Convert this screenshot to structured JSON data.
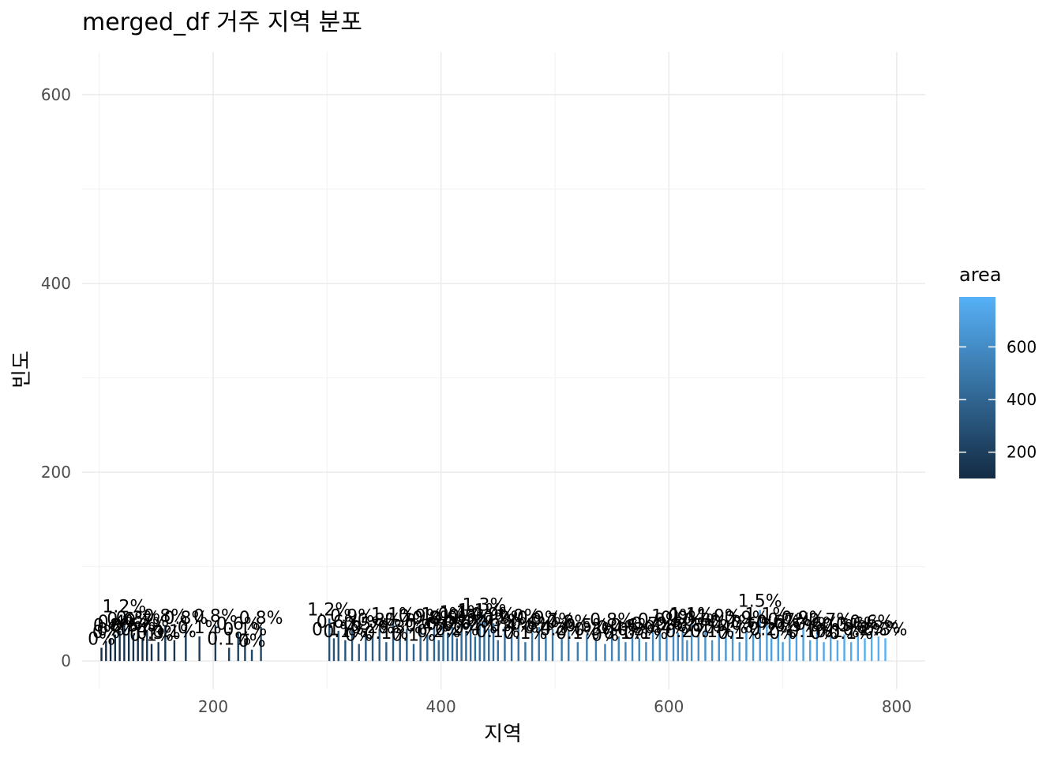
{
  "chart_data": {
    "type": "bar",
    "title": "merged_df 거주 지역 분포",
    "xlabel": "지역",
    "ylabel": "빈도",
    "xlim": [
      85,
      825
    ],
    "ylim": [
      -30,
      645
    ],
    "x_ticks": [
      200,
      400,
      600,
      800
    ],
    "y_ticks": [
      0,
      200,
      400,
      600
    ],
    "grid": true,
    "fill_scale": {
      "variable": "area",
      "low_color": "#132b43",
      "high_color": "#56b1f7",
      "range": [
        100,
        790
      ],
      "ticks": [
        200,
        400,
        600
      ]
    },
    "legend_position": "right",
    "bars": [
      {
        "x": 102,
        "y": 14,
        "label": "0%"
      },
      {
        "x": 106,
        "y": 21,
        "label": "0%"
      },
      {
        "x": 110,
        "y": 24,
        "label": "0%"
      },
      {
        "x": 114,
        "y": 28,
        "label": "0.8%"
      },
      {
        "x": 118,
        "y": 32,
        "label": "0.4%"
      },
      {
        "x": 122,
        "y": 48,
        "label": "1.2%"
      },
      {
        "x": 126,
        "y": 35,
        "label": "0.6%"
      },
      {
        "x": 130,
        "y": 28,
        "label": "0.5%"
      },
      {
        "x": 134,
        "y": 36,
        "label": "0.3%"
      },
      {
        "x": 138,
        "y": 24,
        "label": "0.4%"
      },
      {
        "x": 142,
        "y": 33,
        "label": "0.7%"
      },
      {
        "x": 146,
        "y": 18,
        "label": "0.1%"
      },
      {
        "x": 152,
        "y": 20,
        "label": "0.3%"
      },
      {
        "x": 158,
        "y": 38,
        "label": "0.8%"
      },
      {
        "x": 166,
        "y": 22,
        "label": "0.1%"
      },
      {
        "x": 176,
        "y": 36,
        "label": "0.8%"
      },
      {
        "x": 188,
        "y": 26,
        "label": "0.1%"
      },
      {
        "x": 202,
        "y": 38,
        "label": "0.8%"
      },
      {
        "x": 214,
        "y": 14,
        "label": "0.1%"
      },
      {
        "x": 222,
        "y": 30,
        "label": "0.6%"
      },
      {
        "x": 228,
        "y": 24,
        "label": "0.1%"
      },
      {
        "x": 234,
        "y": 12,
        "label": "0%"
      },
      {
        "x": 242,
        "y": 36,
        "label": "0.8%"
      },
      {
        "x": 302,
        "y": 45,
        "label": "1.2%"
      },
      {
        "x": 306,
        "y": 24,
        "label": "0.1%"
      },
      {
        "x": 310,
        "y": 32,
        "label": "0.6%"
      },
      {
        "x": 316,
        "y": 22,
        "label": "0.1%"
      },
      {
        "x": 322,
        "y": 38,
        "label": "0.9%"
      },
      {
        "x": 328,
        "y": 18,
        "label": "0%"
      },
      {
        "x": 334,
        "y": 30,
        "label": "0.5%"
      },
      {
        "x": 340,
        "y": 26,
        "label": "0.2%"
      },
      {
        "x": 346,
        "y": 34,
        "label": "0.8%"
      },
      {
        "x": 352,
        "y": 20,
        "label": "0.1%"
      },
      {
        "x": 358,
        "y": 40,
        "label": "1.1%"
      },
      {
        "x": 364,
        "y": 26,
        "label": "0.3%"
      },
      {
        "x": 370,
        "y": 34,
        "label": "0.7%"
      },
      {
        "x": 376,
        "y": 18,
        "label": "0.1%"
      },
      {
        "x": 382,
        "y": 38,
        "label": "0.9%"
      },
      {
        "x": 388,
        "y": 28,
        "label": "0.4%"
      },
      {
        "x": 394,
        "y": 36,
        "label": "0.8%"
      },
      {
        "x": 398,
        "y": 22,
        "label": "0.2%"
      },
      {
        "x": 402,
        "y": 40,
        "label": "1.0%"
      },
      {
        "x": 406,
        "y": 30,
        "label": "0.6%"
      },
      {
        "x": 410,
        "y": 36,
        "label": "0.9%"
      },
      {
        "x": 414,
        "y": 24,
        "label": "0.2%"
      },
      {
        "x": 418,
        "y": 42,
        "label": "1.1%"
      },
      {
        "x": 422,
        "y": 32,
        "label": "0.6%"
      },
      {
        "x": 426,
        "y": 38,
        "label": "0.9%"
      },
      {
        "x": 430,
        "y": 26,
        "label": "0.4%"
      },
      {
        "x": 434,
        "y": 44,
        "label": "1.1%"
      },
      {
        "x": 438,
        "y": 50,
        "label": "1.3%"
      },
      {
        "x": 442,
        "y": 34,
        "label": "0.7%"
      },
      {
        "x": 446,
        "y": 40,
        "label": "0.9%"
      },
      {
        "x": 450,
        "y": 22,
        "label": "0.1%"
      },
      {
        "x": 456,
        "y": 36,
        "label": "0.9%"
      },
      {
        "x": 462,
        "y": 28,
        "label": "0.4%"
      },
      {
        "x": 468,
        "y": 38,
        "label": "1.0%"
      },
      {
        "x": 474,
        "y": 20,
        "label": "0.1%"
      },
      {
        "x": 480,
        "y": 30,
        "label": "0.6%"
      },
      {
        "x": 486,
        "y": 36,
        "label": "0.9%"
      },
      {
        "x": 492,
        "y": 26,
        "label": "0.4%"
      },
      {
        "x": 498,
        "y": 34,
        "label": "0.7%"
      },
      {
        "x": 506,
        "y": 24,
        "label": "0.2%"
      },
      {
        "x": 512,
        "y": 32,
        "label": "0.8%"
      },
      {
        "x": 520,
        "y": 20,
        "label": "0.1%"
      },
      {
        "x": 528,
        "y": 28,
        "label": "0.5%"
      },
      {
        "x": 536,
        "y": 24,
        "label": "0.3%"
      },
      {
        "x": 544,
        "y": 18,
        "label": "0%"
      },
      {
        "x": 550,
        "y": 34,
        "label": "0.8%"
      },
      {
        "x": 556,
        "y": 26,
        "label": "0.4%"
      },
      {
        "x": 562,
        "y": 20,
        "label": "0.1%"
      },
      {
        "x": 568,
        "y": 28,
        "label": "0.6%"
      },
      {
        "x": 574,
        "y": 24,
        "label": "0.3%"
      },
      {
        "x": 580,
        "y": 20,
        "label": "0.1%"
      },
      {
        "x": 586,
        "y": 30,
        "label": "0.7%"
      },
      {
        "x": 592,
        "y": 34,
        "label": "0.9%"
      },
      {
        "x": 598,
        "y": 26,
        "label": "0.4%"
      },
      {
        "x": 604,
        "y": 38,
        "label": "1.0%"
      },
      {
        "x": 608,
        "y": 30,
        "label": "0.6%"
      },
      {
        "x": 612,
        "y": 36,
        "label": "0.9%"
      },
      {
        "x": 616,
        "y": 22,
        "label": "0.2%"
      },
      {
        "x": 620,
        "y": 40,
        "label": "1.1%"
      },
      {
        "x": 626,
        "y": 28,
        "label": "0.5%"
      },
      {
        "x": 632,
        "y": 34,
        "label": "0.8%"
      },
      {
        "x": 638,
        "y": 22,
        "label": "0.1%"
      },
      {
        "x": 644,
        "y": 38,
        "label": "1.0%"
      },
      {
        "x": 650,
        "y": 26,
        "label": "0.4%"
      },
      {
        "x": 656,
        "y": 32,
        "label": "0.7%"
      },
      {
        "x": 662,
        "y": 20,
        "label": "0.1%"
      },
      {
        "x": 668,
        "y": 36,
        "label": "0.9%"
      },
      {
        "x": 674,
        "y": 30,
        "label": "0.6%"
      },
      {
        "x": 680,
        "y": 54,
        "label": "1.5%"
      },
      {
        "x": 686,
        "y": 40,
        "label": "1.1%"
      },
      {
        "x": 690,
        "y": 24,
        "label": "0.2%"
      },
      {
        "x": 696,
        "y": 32,
        "label": "0.6%"
      },
      {
        "x": 700,
        "y": 20,
        "label": "0%"
      },
      {
        "x": 706,
        "y": 34,
        "label": "0.7%"
      },
      {
        "x": 712,
        "y": 28,
        "label": "0.5%"
      },
      {
        "x": 718,
        "y": 36,
        "label": "0.9%"
      },
      {
        "x": 724,
        "y": 22,
        "label": "0.1%"
      },
      {
        "x": 730,
        "y": 30,
        "label": "0.6%"
      },
      {
        "x": 736,
        "y": 20,
        "label": "0%"
      },
      {
        "x": 742,
        "y": 34,
        "label": "0.7%"
      },
      {
        "x": 748,
        "y": 22,
        "label": "0.1%"
      },
      {
        "x": 754,
        "y": 28,
        "label": "0.5%"
      },
      {
        "x": 760,
        "y": 20,
        "label": "0.1%"
      },
      {
        "x": 766,
        "y": 30,
        "label": "0.6%"
      },
      {
        "x": 772,
        "y": 24,
        "label": "0.2%"
      },
      {
        "x": 778,
        "y": 32,
        "label": "0.6%"
      },
      {
        "x": 784,
        "y": 26,
        "label": "0.3%"
      },
      {
        "x": 790,
        "y": 24,
        "label": "0.3%"
      }
    ]
  }
}
